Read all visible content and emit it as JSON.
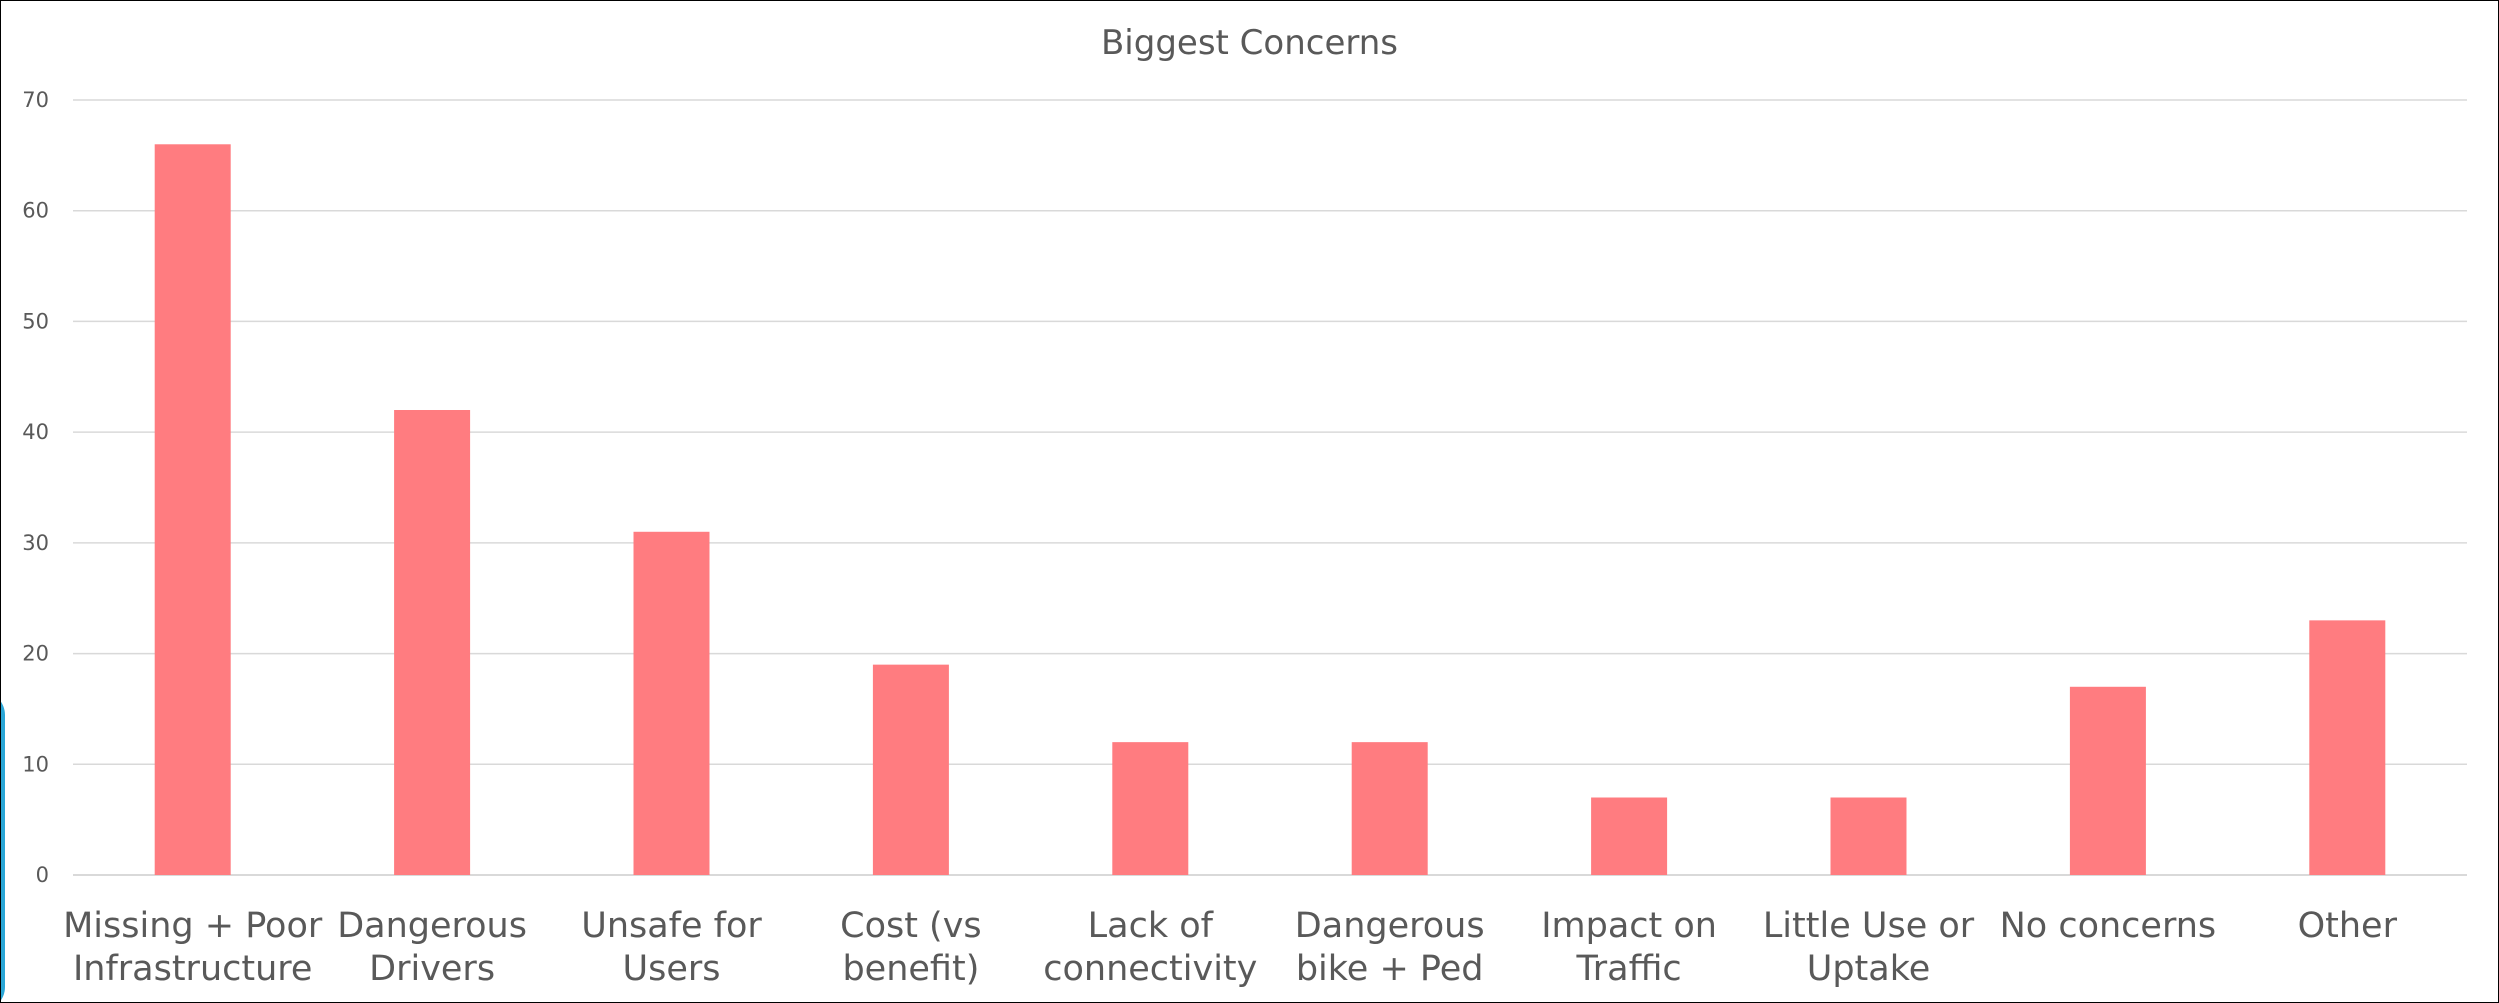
{
  "chart_data": {
    "type": "bar",
    "title": "Biggest Concerns",
    "categories": [
      [
        "Missing + Poor",
        "Infrastructure"
      ],
      [
        "Dangerous",
        "Drivers"
      ],
      [
        "Unsafe for",
        "Users"
      ],
      [
        "Cost (vs",
        "benefit)"
      ],
      [
        "Lack of",
        "connectivity"
      ],
      [
        "Dangerous",
        "bike + Ped"
      ],
      [
        "Impact on",
        "Traffic"
      ],
      [
        "Little Use or",
        "Uptake"
      ],
      [
        "No concerns"
      ],
      [
        "Other"
      ]
    ],
    "values": [
      66,
      42,
      31,
      19,
      12,
      12,
      7,
      7,
      17,
      23
    ],
    "ylim": [
      0,
      70
    ],
    "yticks": [
      0,
      10,
      20,
      30,
      40,
      50,
      60,
      70
    ],
    "grid": true,
    "legend": "none",
    "colors": {
      "bar": "#ff7c80",
      "grid": "#d9d9d9",
      "text": "#595959"
    }
  }
}
